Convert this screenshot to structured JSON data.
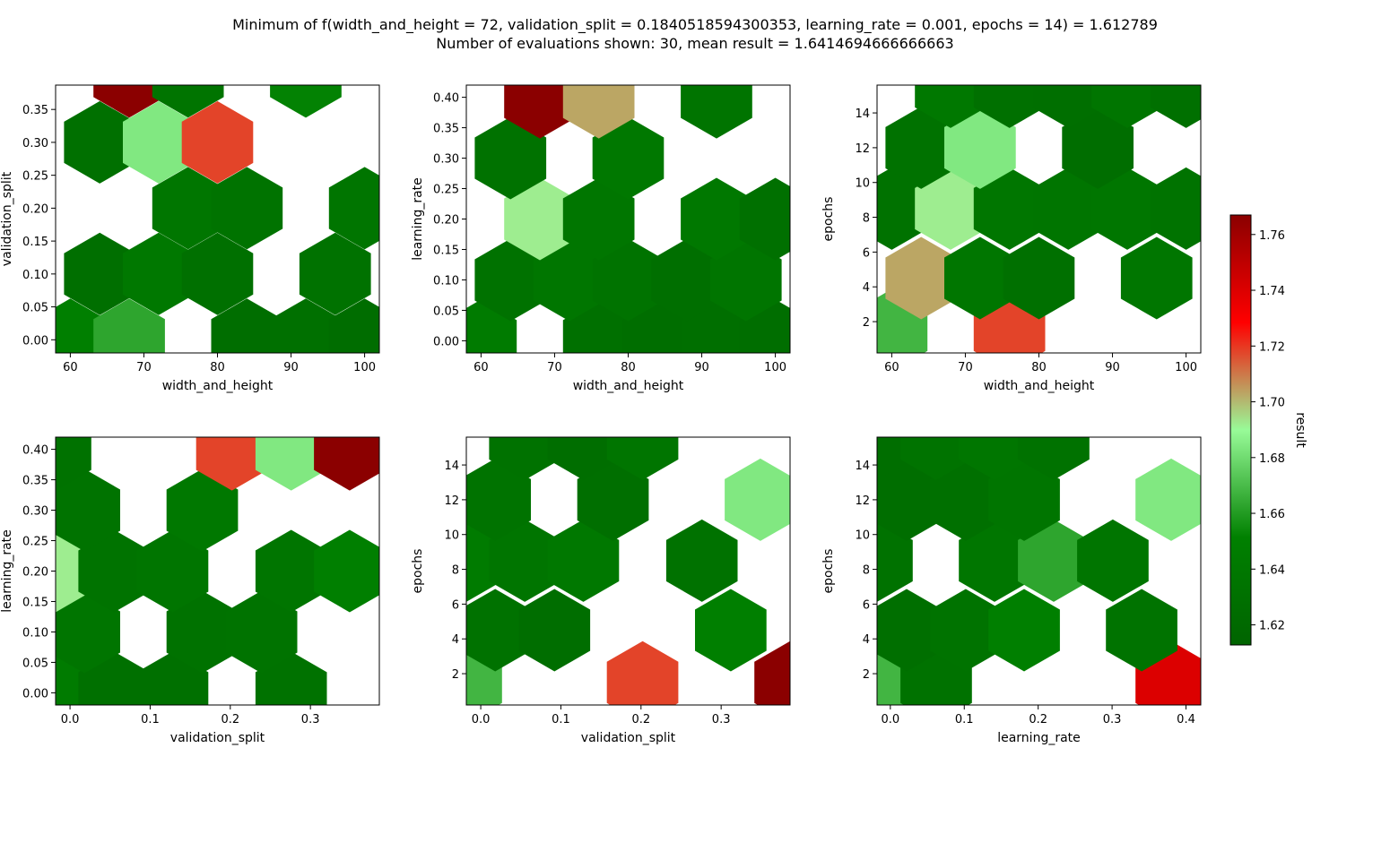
{
  "title_lines": [
    "Minimum of f(width_and_height = 72, validation_split = 0.1840518594300353, learning_rate = 0.001, epochs = 14) = 1.612789",
    "Number of evaluations shown: 30, mean result = 1.6414694666666663"
  ],
  "colorbar": {
    "label": "result",
    "ticks": [
      "1.62",
      "1.64",
      "1.66",
      "1.68",
      "1.70",
      "1.72",
      "1.74",
      "1.76"
    ],
    "range": [
      1.612789,
      1.767
    ],
    "colors": [
      "#006400",
      "#008000",
      "#98fb98",
      "#ff0000",
      "#8b0000"
    ]
  },
  "chart_data": [
    {
      "type": "heatmap",
      "xlabel": "width_and_height",
      "ylabel": "validation_split",
      "xlim": [
        58,
        102
      ],
      "ylim": [
        -0.02,
        0.387
      ],
      "xticks": [
        "60",
        "70",
        "80",
        "90",
        "100"
      ],
      "yticks": [
        "0.00",
        "0.05",
        "0.10",
        "0.15",
        "0.20",
        "0.25",
        "0.30",
        "0.35"
      ],
      "cells": [
        {
          "x": 60,
          "y": 0.0,
          "v": 1.65
        },
        {
          "x": 68,
          "y": 0.0,
          "v": 1.663
        },
        {
          "x": 84,
          "y": 0.0,
          "v": 1.626
        },
        {
          "x": 92,
          "y": 0.0,
          "v": 1.63
        },
        {
          "x": 100,
          "y": 0.0,
          "v": 1.625
        },
        {
          "x": 64,
          "y": 0.1,
          "v": 1.628
        },
        {
          "x": 72,
          "y": 0.1,
          "v": 1.64
        },
        {
          "x": 80,
          "y": 0.1,
          "v": 1.63
        },
        {
          "x": 96,
          "y": 0.1,
          "v": 1.632
        },
        {
          "x": 76,
          "y": 0.2,
          "v": 1.638
        },
        {
          "x": 84,
          "y": 0.2,
          "v": 1.634
        },
        {
          "x": 100,
          "y": 0.2,
          "v": 1.636
        },
        {
          "x": 64,
          "y": 0.3,
          "v": 1.63
        },
        {
          "x": 72,
          "y": 0.3,
          "v": 1.684
        },
        {
          "x": 80,
          "y": 0.3,
          "v": 1.718
        },
        {
          "x": 68,
          "y": 0.4,
          "v": 1.767
        },
        {
          "x": 76,
          "y": 0.4,
          "v": 1.635
        },
        {
          "x": 92,
          "y": 0.4,
          "v": 1.652
        }
      ]
    },
    {
      "type": "heatmap",
      "xlabel": "width_and_height",
      "ylabel": "learning_rate",
      "xlim": [
        58,
        102
      ],
      "ylim": [
        -0.02,
        0.42
      ],
      "xticks": [
        "60",
        "70",
        "80",
        "90",
        "100"
      ],
      "yticks": [
        "0.00",
        "0.05",
        "0.10",
        "0.15",
        "0.20",
        "0.25",
        "0.30",
        "0.35",
        "0.40"
      ],
      "cells": [
        {
          "x": 60,
          "y": 0.0,
          "v": 1.645
        },
        {
          "x": 76,
          "y": 0.0,
          "v": 1.63
        },
        {
          "x": 84,
          "y": 0.0,
          "v": 1.627
        },
        {
          "x": 92,
          "y": 0.0,
          "v": 1.628
        },
        {
          "x": 100,
          "y": 0.0,
          "v": 1.627
        },
        {
          "x": 64,
          "y": 0.1,
          "v": 1.632
        },
        {
          "x": 72,
          "y": 0.1,
          "v": 1.638
        },
        {
          "x": 80,
          "y": 0.1,
          "v": 1.634
        },
        {
          "x": 88,
          "y": 0.1,
          "v": 1.628
        },
        {
          "x": 96,
          "y": 0.1,
          "v": 1.636
        },
        {
          "x": 68,
          "y": 0.2,
          "v": 1.692
        },
        {
          "x": 76,
          "y": 0.2,
          "v": 1.638
        },
        {
          "x": 92,
          "y": 0.2,
          "v": 1.64
        },
        {
          "x": 100,
          "y": 0.2,
          "v": 1.63
        },
        {
          "x": 64,
          "y": 0.3,
          "v": 1.632
        },
        {
          "x": 80,
          "y": 0.3,
          "v": 1.64
        },
        {
          "x": 68,
          "y": 0.4,
          "v": 1.767
        },
        {
          "x": 76,
          "y": 0.4,
          "v": 1.703
        },
        {
          "x": 92,
          "y": 0.4,
          "v": 1.635
        }
      ]
    },
    {
      "type": "heatmap",
      "xlabel": "width_and_height",
      "ylabel": "epochs",
      "xlim": [
        58,
        102
      ],
      "ylim": [
        0.2,
        15.6
      ],
      "xticks": [
        "60",
        "70",
        "80",
        "90",
        "100"
      ],
      "yticks": [
        "2",
        "4",
        "6",
        "8",
        "10",
        "12",
        "14"
      ],
      "cells": [
        {
          "x": 60,
          "y": 1.5,
          "v": 1.668
        },
        {
          "x": 76,
          "y": 1.5,
          "v": 1.718
        },
        {
          "x": 64,
          "y": 4.5,
          "v": 1.703
        },
        {
          "x": 72,
          "y": 4.5,
          "v": 1.638
        },
        {
          "x": 80,
          "y": 4.5,
          "v": 1.63
        },
        {
          "x": 96,
          "y": 4.5,
          "v": 1.638
        },
        {
          "x": 60,
          "y": 8.5,
          "v": 1.632
        },
        {
          "x": 68,
          "y": 8.5,
          "v": 1.692
        },
        {
          "x": 76,
          "y": 8.5,
          "v": 1.638
        },
        {
          "x": 84,
          "y": 8.5,
          "v": 1.636
        },
        {
          "x": 92,
          "y": 8.5,
          "v": 1.638
        },
        {
          "x": 100,
          "y": 8.5,
          "v": 1.633
        },
        {
          "x": 64,
          "y": 12,
          "v": 1.632
        },
        {
          "x": 72,
          "y": 12,
          "v": 1.684
        },
        {
          "x": 88,
          "y": 12,
          "v": 1.627
        },
        {
          "x": 68,
          "y": 15.5,
          "v": 1.64
        },
        {
          "x": 76,
          "y": 15.5,
          "v": 1.63
        },
        {
          "x": 84,
          "y": 15.5,
          "v": 1.628
        },
        {
          "x": 92,
          "y": 15.5,
          "v": 1.636
        },
        {
          "x": 100,
          "y": 15.5,
          "v": 1.63
        }
      ]
    },
    {
      "type": "heatmap",
      "xlabel": "validation_split",
      "ylabel": "learning_rate",
      "xlim": [
        -0.018,
        0.386
      ],
      "ylim": [
        -0.02,
        0.42
      ],
      "xticks": [
        "0.0",
        "0.1",
        "0.2",
        "0.3"
      ],
      "yticks": [
        "0.00",
        "0.05",
        "0.10",
        "0.15",
        "0.20",
        "0.25",
        "0.30",
        "0.35",
        "0.40"
      ],
      "cells": [
        {
          "x": -0.018,
          "y": 0.0,
          "v": 1.645
        },
        {
          "x": 0.055,
          "y": 0.0,
          "v": 1.63
        },
        {
          "x": 0.128,
          "y": 0.0,
          "v": 1.63
        },
        {
          "x": 0.276,
          "y": 0.0,
          "v": 1.632
        },
        {
          "x": 0.018,
          "y": 0.1,
          "v": 1.636
        },
        {
          "x": 0.165,
          "y": 0.1,
          "v": 1.632
        },
        {
          "x": 0.239,
          "y": 0.1,
          "v": 1.633
        },
        {
          "x": -0.018,
          "y": 0.2,
          "v": 1.692
        },
        {
          "x": 0.055,
          "y": 0.2,
          "v": 1.634
        },
        {
          "x": 0.128,
          "y": 0.2,
          "v": 1.636
        },
        {
          "x": 0.276,
          "y": 0.2,
          "v": 1.636
        },
        {
          "x": 0.349,
          "y": 0.2,
          "v": 1.65
        },
        {
          "x": 0.018,
          "y": 0.3,
          "v": 1.634
        },
        {
          "x": 0.165,
          "y": 0.3,
          "v": 1.64
        },
        {
          "x": -0.018,
          "y": 0.4,
          "v": 1.632
        },
        {
          "x": 0.202,
          "y": 0.4,
          "v": 1.718
        },
        {
          "x": 0.276,
          "y": 0.4,
          "v": 1.684
        },
        {
          "x": 0.349,
          "y": 0.4,
          "v": 1.767
        }
      ]
    },
    {
      "type": "heatmap",
      "xlabel": "validation_split",
      "ylabel": "epochs",
      "xlim": [
        -0.018,
        0.386
      ],
      "ylim": [
        0.2,
        15.6
      ],
      "xticks": [
        "0.0",
        "0.1",
        "0.2",
        "0.3"
      ],
      "yticks": [
        "2",
        "4",
        "6",
        "8",
        "10",
        "12",
        "14"
      ],
      "cells": [
        {
          "x": -0.018,
          "y": 1.5,
          "v": 1.668
        },
        {
          "x": 0.202,
          "y": 1.5,
          "v": 1.718
        },
        {
          "x": 0.386,
          "y": 1.5,
          "v": 1.767
        },
        {
          "x": 0.018,
          "y": 4.5,
          "v": 1.632
        },
        {
          "x": 0.092,
          "y": 4.5,
          "v": 1.627
        },
        {
          "x": 0.312,
          "y": 4.5,
          "v": 1.65
        },
        {
          "x": -0.018,
          "y": 8.5,
          "v": 1.645
        },
        {
          "x": 0.055,
          "y": 8.5,
          "v": 1.636
        },
        {
          "x": 0.128,
          "y": 8.5,
          "v": 1.64
        },
        {
          "x": 0.276,
          "y": 8.5,
          "v": 1.632
        },
        {
          "x": 0.018,
          "y": 12,
          "v": 1.633
        },
        {
          "x": 0.165,
          "y": 12,
          "v": 1.628
        },
        {
          "x": 0.349,
          "y": 12,
          "v": 1.684
        },
        {
          "x": 0.055,
          "y": 15.5,
          "v": 1.632
        },
        {
          "x": 0.128,
          "y": 15.5,
          "v": 1.627
        },
        {
          "x": 0.202,
          "y": 15.5,
          "v": 1.636
        }
      ]
    },
    {
      "type": "heatmap",
      "xlabel": "learning_rate",
      "ylabel": "epochs",
      "xlim": [
        -0.018,
        0.42
      ],
      "ylim": [
        0.2,
        15.6
      ],
      "xticks": [
        "0.0",
        "0.1",
        "0.2",
        "0.3",
        "0.4"
      ],
      "yticks": [
        "2",
        "4",
        "6",
        "8",
        "10",
        "12",
        "14"
      ],
      "cells": [
        {
          "x": -0.018,
          "y": 1.5,
          "v": 1.668
        },
        {
          "x": 0.062,
          "y": 1.5,
          "v": 1.632
        },
        {
          "x": 0.38,
          "y": 1.5,
          "v": 1.74
        },
        {
          "x": 0.022,
          "y": 4.5,
          "v": 1.628
        },
        {
          "x": 0.102,
          "y": 4.5,
          "v": 1.634
        },
        {
          "x": 0.181,
          "y": 4.5,
          "v": 1.65
        },
        {
          "x": 0.34,
          "y": 4.5,
          "v": 1.634
        },
        {
          "x": -0.018,
          "y": 8.5,
          "v": 1.632
        },
        {
          "x": 0.141,
          "y": 8.5,
          "v": 1.638
        },
        {
          "x": 0.221,
          "y": 8.5,
          "v": 1.663
        },
        {
          "x": 0.301,
          "y": 8.5,
          "v": 1.636
        },
        {
          "x": 0.022,
          "y": 12,
          "v": 1.627
        },
        {
          "x": 0.102,
          "y": 12,
          "v": 1.63
        },
        {
          "x": 0.181,
          "y": 12,
          "v": 1.636
        },
        {
          "x": 0.38,
          "y": 12,
          "v": 1.684
        },
        {
          "x": -0.018,
          "y": 15.5,
          "v": 1.627
        },
        {
          "x": 0.062,
          "y": 15.5,
          "v": 1.634
        },
        {
          "x": 0.141,
          "y": 15.5,
          "v": 1.638
        },
        {
          "x": 0.221,
          "y": 15.5,
          "v": 1.632
        }
      ]
    }
  ]
}
